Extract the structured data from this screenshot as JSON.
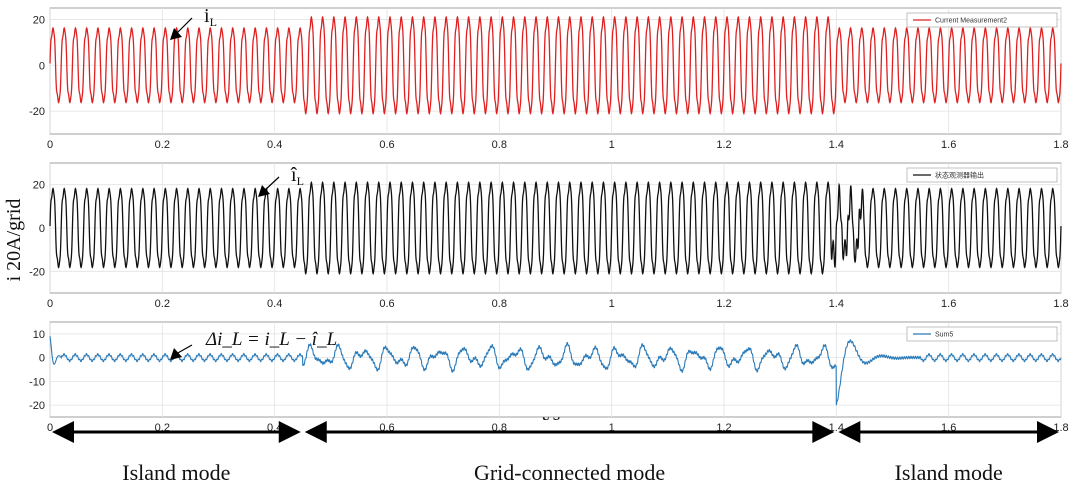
{
  "chart_data": [
    {
      "type": "line",
      "panel": "top",
      "legend": "Current Measurement2",
      "legend_position": "top-right",
      "color": "#e02020",
      "grid": true,
      "xlim": [
        0,
        1.8
      ],
      "ylim": [
        -30,
        25
      ],
      "x_ticks": [
        "0",
        "0.2",
        "0.4",
        "0.6",
        "0.8",
        "1",
        "1.2",
        "1.4",
        "1.6",
        "1.8"
      ],
      "y_ticks": [
        "20",
        "0",
        "-20"
      ],
      "annotation": "i",
      "annotation_sub": "L",
      "series": [
        {
          "segment": "0-0.45 s",
          "waveform": "sinusoid",
          "frequency_hz": 50,
          "amplitude": 17
        },
        {
          "segment": "0.45-1.4 s",
          "waveform": "sinusoid",
          "frequency_hz": 50,
          "amplitude": 22
        },
        {
          "segment": "1.4-1.8 s",
          "waveform": "sinusoid",
          "frequency_hz": 50,
          "amplitude": 17
        }
      ]
    },
    {
      "type": "line",
      "panel": "middle",
      "legend": "状态观测器输出",
      "legend_position": "top-right",
      "color": "#111111",
      "grid": true,
      "xlim": [
        0,
        1.8
      ],
      "ylim": [
        -30,
        30
      ],
      "x_ticks": [
        "0",
        "0.2",
        "0.4",
        "0.6",
        "0.8",
        "1",
        "1.2",
        "1.4",
        "1.6",
        "1.8"
      ],
      "y_ticks": [
        "20",
        "0",
        "-20"
      ],
      "annotation": "î",
      "annotation_sub": "L",
      "series": [
        {
          "segment": "0-0.45 s",
          "waveform": "sinusoid",
          "frequency_hz": 50,
          "amplitude": 19
        },
        {
          "segment": "0.45-1.4 s",
          "waveform": "sinusoid",
          "frequency_hz": 50,
          "amplitude": 22
        },
        {
          "segment": "1.4-1.8 s",
          "waveform": "sinusoid",
          "frequency_hz": 50,
          "amplitude": 19
        }
      ]
    },
    {
      "type": "line",
      "panel": "bottom",
      "legend": "Sum5",
      "legend_position": "top-right",
      "color": "#2a7ab8",
      "grid": true,
      "xlim": [
        0,
        1.8
      ],
      "ylim": [
        -25,
        15
      ],
      "x_ticks": [
        "0",
        "0.2",
        "0.4",
        "0.6",
        "0.8",
        "1",
        "1.2",
        "1.4",
        "1.6",
        "1.8"
      ],
      "y_ticks": [
        "10",
        "0",
        "-10",
        "-20"
      ],
      "annotation": "Δi_L = i_L − î_L",
      "series": [
        {
          "segment": "0-0.45 s",
          "waveform": "small ripple",
          "amplitude": 1.5
        },
        {
          "segment": "0.45-1.4 s",
          "waveform": "oscillation",
          "amplitude": 5
        },
        {
          "segment": "1.4-1.5 s",
          "waveform": "transient",
          "min": -22,
          "max": 14
        },
        {
          "segment": "1.5-1.8 s",
          "waveform": "small ripple",
          "amplitude": 1.5
        }
      ]
    }
  ],
  "ylabel": "i 20A/grid",
  "xlabel": "t/s",
  "modes": [
    "Island mode",
    "Grid-connected mode",
    "Island mode"
  ],
  "mode_boundaries_s": [
    0,
    0.45,
    1.4,
    1.8
  ]
}
